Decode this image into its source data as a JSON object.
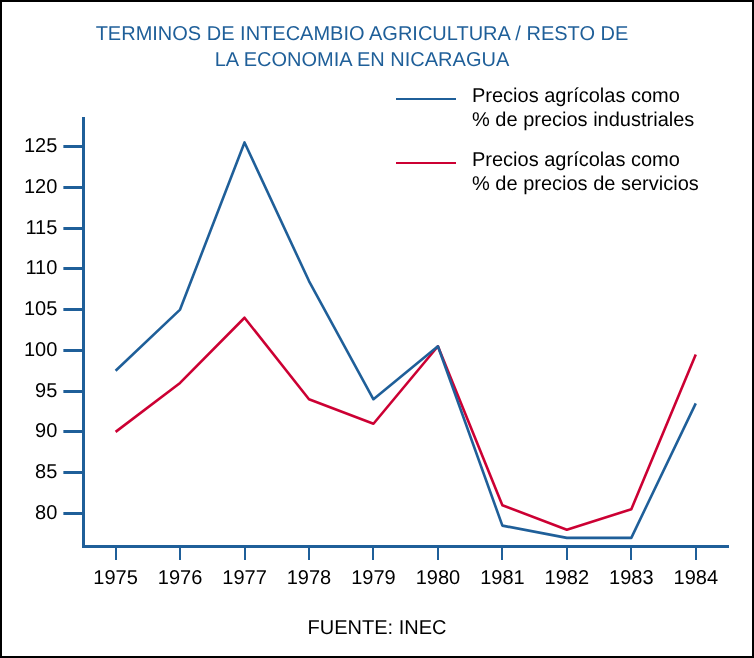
{
  "chart_data": {
    "type": "line",
    "title": "TERMINOS DE INTECAMBIO AGRICULTURA / RESTO DE LA ECONOMIA EN NICARAGUA",
    "categories": [
      "1975",
      "1976",
      "1977",
      "1978",
      "1979",
      "1980",
      "1981",
      "1982",
      "1983",
      "1984"
    ],
    "series": [
      {
        "name": "Precios agrícolas como % de precios industriales",
        "color": "#1f5f99",
        "values": [
          97.5,
          105,
          125.5,
          108.5,
          94,
          100.5,
          78.5,
          77,
          77,
          93.5
        ]
      },
      {
        "name": "Precios agrícolas como % de precios de servicios",
        "color": "#cc0033",
        "values": [
          90,
          96,
          104,
          94,
          91,
          100.5,
          81,
          78,
          80.5,
          99.5
        ]
      }
    ],
    "ylim": [
      76,
      128.5
    ],
    "yticks": [
      80,
      85,
      90,
      95,
      100,
      105,
      110,
      115,
      120,
      125
    ],
    "grid": false,
    "legend": "top right",
    "marker": "none",
    "line_style": "solid",
    "annotations": [
      "FUENTE: INEC"
    ]
  }
}
